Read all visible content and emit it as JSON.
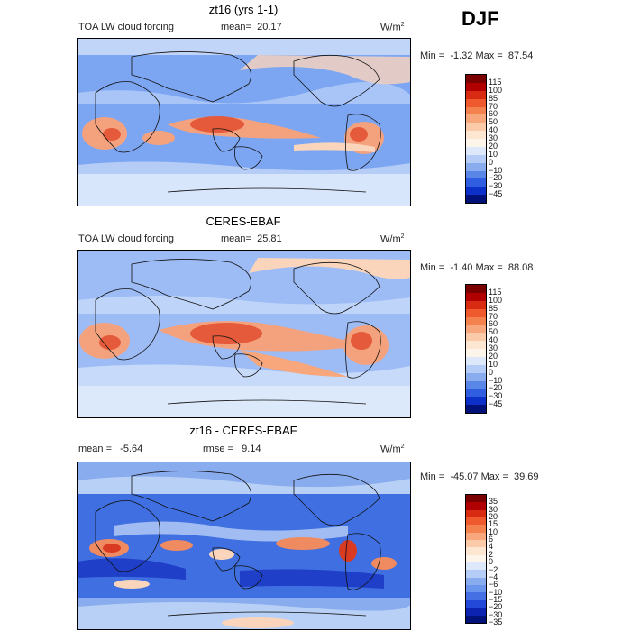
{
  "season": "DJF",
  "panels": [
    {
      "title": "zt16 (yrs 1-1)",
      "left_label": "TOA LW cloud forcing",
      "mean_label": "mean=",
      "mean_value": "20.17",
      "units": "W/m",
      "units_sup": "2",
      "min_label": "Min =",
      "min_value": "-1.32",
      "max_label": "Max =",
      "max_value": "87.54",
      "colorbar_labels": [
        "115",
        "100",
        "85",
        "70",
        "60",
        "50",
        "40",
        "30",
        "20",
        "10",
        "0",
        "−10",
        "−20",
        "−30",
        "−45"
      ],
      "colorbar_colors": [
        "#7a0000",
        "#b00000",
        "#d92b12",
        "#ee5a2e",
        "#f4824f",
        "#f7a77b",
        "#fbcba9",
        "#fde6d2",
        "#fdf5ea",
        "#dde9fb",
        "#b4ccf6",
        "#89acef",
        "#5a86e8",
        "#2f5ee0",
        "#0d30c8",
        "#00127a"
      ],
      "map_colors": {
        "base": "#7da6f2",
        "warm1": "#fbd5bb",
        "warm2": "#f4a27e",
        "warm3": "#e45a3a",
        "cool": "#d8e6fb"
      }
    },
    {
      "title": "CERES-EBAF",
      "left_label": "TOA LW cloud forcing",
      "mean_label": "mean=",
      "mean_value": "25.81",
      "units": "W/m",
      "units_sup": "2",
      "min_label": "Min =",
      "min_value": "-1.40",
      "max_label": "Max =",
      "max_value": "88.08",
      "colorbar_labels": [
        "115",
        "100",
        "85",
        "70",
        "60",
        "50",
        "40",
        "30",
        "20",
        "10",
        "0",
        "−10",
        "−20",
        "−30",
        "−45"
      ],
      "colorbar_colors": [
        "#7a0000",
        "#b00000",
        "#d92b12",
        "#ee5a2e",
        "#f4824f",
        "#f7a77b",
        "#fbcba9",
        "#fde6d2",
        "#fdf5ea",
        "#dde9fb",
        "#b4ccf6",
        "#89acef",
        "#5a86e8",
        "#2f5ee0",
        "#0d30c8",
        "#00127a"
      ],
      "map_colors": {
        "base": "#9dbcf5",
        "warm1": "#fbd5bb",
        "warm2": "#f4a27e",
        "warm3": "#e45a3a",
        "cool": "#dce9fb"
      }
    },
    {
      "title": "zt16 - CERES-EBAF",
      "left_label": "mean =",
      "mean_label": "",
      "mean_value": "-5.64",
      "rmse_label": "rmse =",
      "rmse_value": "9.14",
      "units": "W/m",
      "units_sup": "2",
      "min_label": "Min =",
      "min_value": "-45.07",
      "max_label": "Max =",
      "max_value": "39.69",
      "colorbar_labels": [
        "35",
        "30",
        "20",
        "15",
        "10",
        "6",
        "4",
        "2",
        "0",
        "−2",
        "−4",
        "−6",
        "−10",
        "−15",
        "−20",
        "−30",
        "−35"
      ],
      "colorbar_colors": [
        "#7a0000",
        "#b00000",
        "#d92b12",
        "#ee5a2e",
        "#f4824f",
        "#f7a77b",
        "#fbcba9",
        "#fde6d2",
        "#fdf5ea",
        "#dde9fb",
        "#b4ccf6",
        "#89acef",
        "#6a95ec",
        "#4470e4",
        "#2349d8",
        "#0b23b0",
        "#00127a"
      ],
      "map_colors": {
        "base": "#3f6fe0",
        "warm1": "#fbd5bb",
        "warm2": "#f08a60",
        "warm3": "#d83a22",
        "cool": "#b9d0f6"
      }
    }
  ]
}
